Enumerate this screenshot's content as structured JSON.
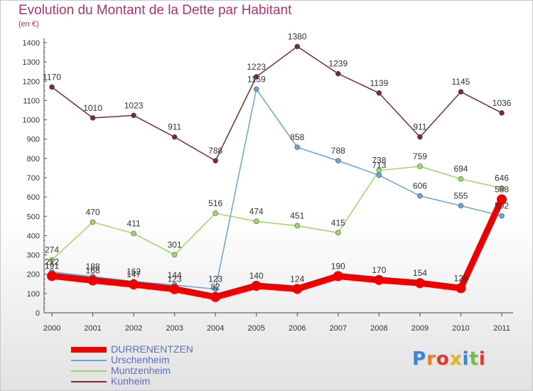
{
  "header": {
    "title": "Evolution du Montant de la Dette par Habitant",
    "subtitle": "(en €)"
  },
  "brand": {
    "letters": [
      "P",
      "r",
      "o",
      "x",
      "i",
      "t",
      "i"
    ],
    "colors": [
      "#3a86d6",
      "#e8802a",
      "#e0382e",
      "#e8b52a",
      "#3a86d6",
      "#6fbf3a",
      "#e0382e"
    ]
  },
  "chart_data": {
    "type": "line",
    "title": "Evolution du Montant de la Dette par Habitant",
    "ylabel": "(en €)",
    "xlabel": "",
    "ylim": [
      0,
      1400
    ],
    "yticks": [
      0,
      100,
      200,
      300,
      400,
      500,
      600,
      700,
      800,
      900,
      1000,
      1100,
      1200,
      1300,
      1400
    ],
    "x": [
      2000,
      2001,
      2002,
      2003,
      2004,
      2005,
      2006,
      2007,
      2008,
      2009,
      2010,
      2011
    ],
    "grid": false,
    "legend_position": "bottom-left",
    "series": [
      {
        "name": "Kunheim",
        "color": "#7a2c35",
        "values": [
          1170,
          1010,
          1023,
          911,
          788,
          1223,
          1380,
          1239,
          1139,
          911,
          1145,
          1036
        ]
      },
      {
        "name": "Muntzenheim",
        "color": "#9ed864",
        "values": [
          274,
          470,
          411,
          301,
          516,
          474,
          451,
          415,
          738,
          759,
          694,
          646
        ]
      },
      {
        "name": "Urschenheim",
        "color": "#6ba4d8",
        "values": [
          212,
          188,
          162,
          144,
          123,
          1159,
          858,
          788,
          713,
          606,
          555,
          502
        ]
      },
      {
        "name": "DURRENENTZEN",
        "color": "#ee0000",
        "values": [
          191,
          168,
          147,
          123,
          82,
          140,
          124,
          190,
          170,
          154,
          128,
          588
        ]
      }
    ],
    "legend": [
      "DURRENENTZEN",
      "Urschenheim",
      "Muntzenheim",
      "Kunheim"
    ]
  }
}
